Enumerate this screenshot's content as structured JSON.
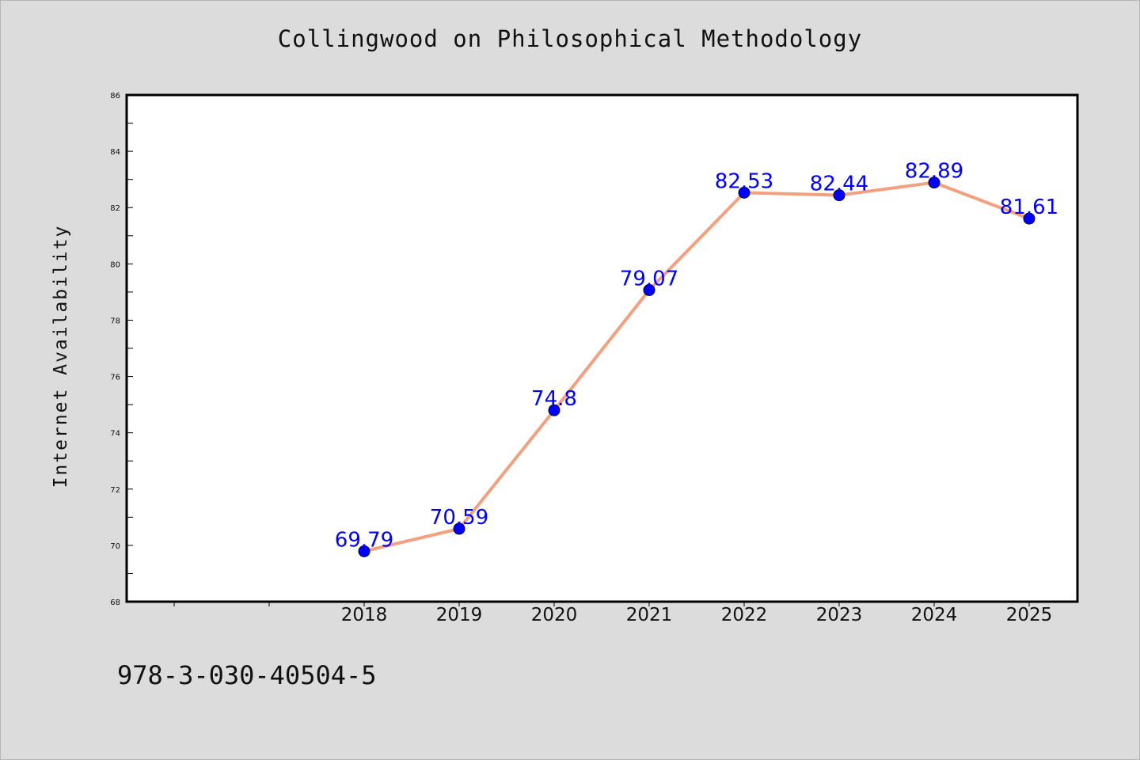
{
  "chart_data": {
    "type": "line",
    "title": "Collingwood on Philosophical Methodology",
    "ylabel": "Internet Availability",
    "xlabel": "",
    "categories": [
      "2018",
      "2019",
      "2020",
      "2021",
      "2022",
      "2023",
      "2024",
      "2025"
    ],
    "x_blank_slots_before": 2,
    "values": [
      69.79,
      70.59,
      74.8,
      79.07,
      82.53,
      82.44,
      82.89,
      81.61
    ],
    "data_labels": [
      "69.79",
      "70.59",
      "74.8",
      "79.07",
      "82.53",
      "82.44",
      "82.89",
      "81.61"
    ],
    "ylim": [
      68,
      86
    ],
    "yticks": [
      68,
      70,
      72,
      74,
      76,
      78,
      80,
      82,
      84,
      86
    ],
    "grid": false,
    "legend": "none",
    "colors": {
      "line": "#f4a07f",
      "marker": "#0000ff",
      "label": "#0000ff",
      "plot_bg": "#ffffff",
      "page_bg": "#dcdcdc"
    }
  },
  "footer": {
    "isbn": "978-3-030-40504-5"
  }
}
